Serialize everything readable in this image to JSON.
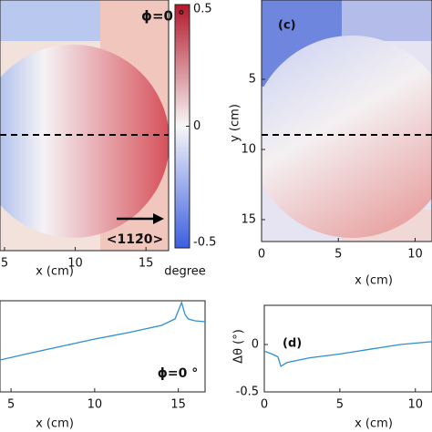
{
  "chart_data": [
    {
      "type": "heatmap",
      "annotation": "ϕ=0 °",
      "direction_label": "<112̄0>",
      "xlabel": "x (cm)",
      "xlim": [
        4.68,
        16.6
      ],
      "xticks": [
        5,
        10,
        15
      ],
      "colorbar": {
        "label": "degree",
        "ylim": [
          -0.5,
          0.5
        ],
        "yticks": [
          0.5,
          0,
          -0.5
        ]
      }
    },
    {
      "type": "heatmap",
      "panel_label": "(c)",
      "xlabel": "x (cm)",
      "ylabel": "y (cm)",
      "xlim": [
        0,
        11.1
      ],
      "xticks": [
        0,
        5,
        10
      ],
      "ylim": [
        0,
        16.56
      ],
      "yticks": [
        5,
        10,
        15
      ],
      "y_reversed": true
    },
    {
      "type": "line",
      "annotation": "ϕ=0 °",
      "xlabel": "x (cm)",
      "xlim": [
        4.34,
        16.6
      ],
      "xticks": [
        5,
        10,
        15
      ],
      "ylim": [
        -0.5,
        0.5
      ],
      "x": [
        4.34,
        6,
        8,
        10,
        12,
        14,
        14.8,
        15.2,
        15.4,
        15.6,
        16,
        16.6
      ],
      "series": [
        {
          "color": "#2e8fd0",
          "values": [
            -0.15,
            -0.08,
            0,
            0.08,
            0.15,
            0.23,
            0.3,
            0.48,
            0.35,
            0.3,
            0.28,
            0.27
          ]
        }
      ]
    },
    {
      "type": "line",
      "panel_label": "(d)",
      "xlabel": "x (cm)",
      "ylabel": "Δθ (°)",
      "xlim": [
        0,
        11.1
      ],
      "xticks": [
        0,
        5,
        10
      ],
      "ylim": [
        -0.5,
        0.5
      ],
      "yticks": [
        0,
        -0.5
      ],
      "x": [
        0,
        0.5,
        0.9,
        1.1,
        1.5,
        3,
        5,
        7,
        9,
        11.1
      ],
      "series": [
        {
          "color": "#2e8fd0",
          "values": [
            -0.07,
            -0.1,
            -0.13,
            -0.23,
            -0.19,
            -0.14,
            -0.1,
            -0.05,
            0,
            0.03
          ]
        }
      ]
    }
  ]
}
